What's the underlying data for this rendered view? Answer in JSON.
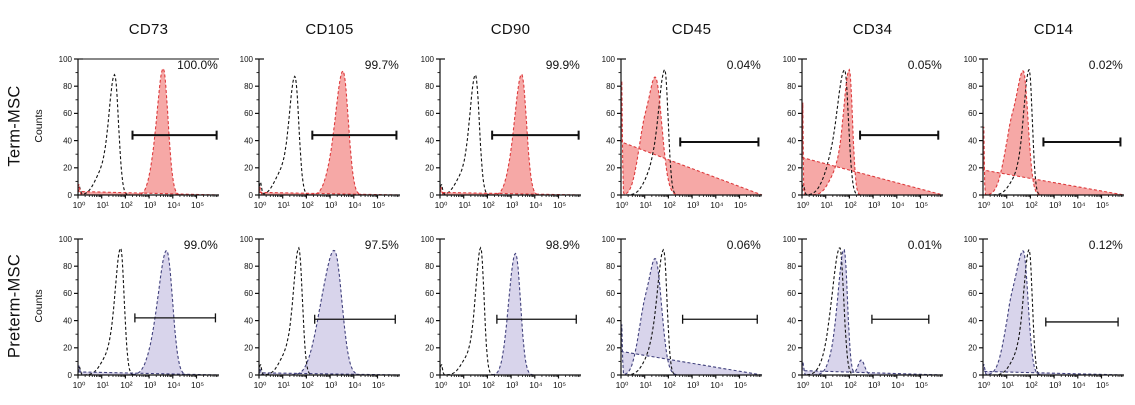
{
  "figure": {
    "columns": [
      "CD73",
      "CD105",
      "CD90",
      "CD45",
      "CD34",
      "CD14"
    ],
    "rows": [
      {
        "label": "Term-MSC",
        "ylabel": "Counts",
        "fill": "#f6a8a6",
        "outline": "#dc3a3c",
        "gate_width": 2
      },
      {
        "label": "Preterm-MSC",
        "ylabel": "Counts",
        "fill": "#d8d4eb",
        "outline": "#40407c",
        "gate_width": 1.3
      }
    ],
    "colors": {
      "axis": "#111111",
      "control_curve": "#111111",
      "text": "#111111",
      "background": "#ffffff"
    }
  },
  "axes": {
    "ylim": [
      0,
      100
    ],
    "y_ticks": [
      0,
      20,
      40,
      60,
      80,
      100
    ],
    "x_scale": "log",
    "x_tick_exponents": [
      0,
      1,
      2,
      3,
      4,
      5
    ],
    "x_max_log": 5.95
  },
  "chart_data": {
    "type": "area",
    "description": "Flow cytometry surface-marker histograms. Dashed black curve = isotype control; filled dashed curve = stained sample; horizontal capped bar = positivity gate; number = percent positive cells. Curve shapes encoded as skewed-gaussian components (c = log10 x center, h = peak height in counts, wl/wr = left/right widths in decades).",
    "panels": [
      {
        "row": 0,
        "marker": "CD73",
        "percent": "100.0%",
        "top_spine": true,
        "gate": {
          "from_log": 2.3,
          "to_log": 5.85,
          "y": 44
        },
        "control": [
          {
            "c": 1.55,
            "h": 87,
            "wl": 0.24,
            "wr": 0.16
          },
          {
            "c": 1.0,
            "h": 16,
            "wl": 0.3,
            "wr": 0.25
          },
          {
            "c": 0.05,
            "h": 6,
            "wl": 0.03,
            "wr": 0.05
          }
        ],
        "sample": [
          {
            "c": 3.6,
            "h": 92,
            "wl": 0.25,
            "wr": 0.2
          },
          {
            "c": 3.15,
            "h": 12,
            "wl": 0.2,
            "wr": 0.2
          },
          {
            "c": 0.03,
            "h": 8,
            "wl": 0.02,
            "wr": 0.04
          }
        ]
      },
      {
        "row": 0,
        "marker": "CD105",
        "percent": "99.7%",
        "top_spine": false,
        "gate": {
          "from_log": 2.25,
          "to_log": 5.8,
          "y": 44
        },
        "control": [
          {
            "c": 1.52,
            "h": 86,
            "wl": 0.24,
            "wr": 0.16
          },
          {
            "c": 0.95,
            "h": 16,
            "wl": 0.3,
            "wr": 0.25
          },
          {
            "c": 0.05,
            "h": 10,
            "wl": 0.03,
            "wr": 0.05
          }
        ],
        "sample": [
          {
            "c": 3.55,
            "h": 90,
            "wl": 0.3,
            "wr": 0.22
          },
          {
            "c": 3.0,
            "h": 12,
            "wl": 0.25,
            "wr": 0.25
          },
          {
            "c": 0.03,
            "h": 6,
            "wl": 0.02,
            "wr": 0.04
          }
        ]
      },
      {
        "row": 0,
        "marker": "CD90",
        "percent": "99.9%",
        "top_spine": false,
        "gate": {
          "from_log": 2.2,
          "to_log": 5.85,
          "y": 44
        },
        "control": [
          {
            "c": 1.5,
            "h": 87,
            "wl": 0.24,
            "wr": 0.16
          },
          {
            "c": 0.95,
            "h": 14,
            "wl": 0.3,
            "wr": 0.25
          },
          {
            "c": 0.05,
            "h": 8,
            "wl": 0.03,
            "wr": 0.05
          }
        ],
        "sample": [
          {
            "c": 3.45,
            "h": 88,
            "wl": 0.28,
            "wr": 0.2
          },
          {
            "c": 2.95,
            "h": 10,
            "wl": 0.22,
            "wr": 0.22
          },
          {
            "c": 0.03,
            "h": 6,
            "wl": 0.02,
            "wr": 0.04
          }
        ]
      },
      {
        "row": 0,
        "marker": "CD45",
        "percent": "0.04%",
        "top_spine": false,
        "gate": {
          "from_log": 2.5,
          "to_log": 5.8,
          "y": 39
        },
        "control": [
          {
            "c": 1.85,
            "h": 92,
            "wl": 0.28,
            "wr": 0.14
          },
          {
            "c": 1.25,
            "h": 14,
            "wl": 0.3,
            "wr": 0.2
          }
        ],
        "sample": [
          {
            "c": 1.45,
            "h": 86,
            "wl": 0.32,
            "wr": 0.27
          },
          {
            "c": 0.9,
            "h": 30,
            "wl": 0.26,
            "wr": 0.2
          },
          {
            "c": 0.02,
            "h": 95,
            "wl": 0.015,
            "wr": 0.03
          }
        ]
      },
      {
        "row": 0,
        "marker": "CD34",
        "percent": "0.05%",
        "top_spine": false,
        "gate": {
          "from_log": 2.45,
          "to_log": 5.75,
          "y": 44
        },
        "control": [
          {
            "c": 1.8,
            "h": 92,
            "wl": 0.35,
            "wr": 0.16
          },
          {
            "c": 1.1,
            "h": 12,
            "wl": 0.3,
            "wr": 0.2
          },
          {
            "c": 0.05,
            "h": 8,
            "wl": 0.03,
            "wr": 0.05
          }
        ],
        "sample": [
          {
            "c": 2.0,
            "h": 92,
            "wl": 0.26,
            "wr": 0.13
          },
          {
            "c": 1.4,
            "h": 14,
            "wl": 0.3,
            "wr": 0.2
          },
          {
            "c": 0.02,
            "h": 90,
            "wl": 0.013,
            "wr": 0.02
          }
        ]
      },
      {
        "row": 0,
        "marker": "CD14",
        "percent": "0.02%",
        "top_spine": false,
        "gate": {
          "from_log": 2.55,
          "to_log": 5.8,
          "y": 39
        },
        "control": [
          {
            "c": 1.95,
            "h": 92,
            "wl": 0.24,
            "wr": 0.13
          },
          {
            "c": 1.4,
            "h": 12,
            "wl": 0.3,
            "wr": 0.2
          }
        ],
        "sample": [
          {
            "c": 1.7,
            "h": 91,
            "wl": 0.35,
            "wr": 0.2
          },
          {
            "c": 1.1,
            "h": 28,
            "wl": 0.3,
            "wr": 0.2
          },
          {
            "c": 0.02,
            "h": 60,
            "wl": 0.013,
            "wr": 0.025
          }
        ]
      },
      {
        "row": 1,
        "marker": "CD73",
        "percent": "99.0%",
        "top_spine": false,
        "gate": {
          "from_log": 2.4,
          "to_log": 5.8,
          "y": 42
        },
        "control": [
          {
            "c": 1.8,
            "h": 93,
            "wl": 0.24,
            "wr": 0.15
          },
          {
            "c": 1.25,
            "h": 13,
            "wl": 0.3,
            "wr": 0.2
          },
          {
            "c": 0.05,
            "h": 6,
            "wl": 0.03,
            "wr": 0.05
          }
        ],
        "sample": [
          {
            "c": 3.75,
            "h": 90,
            "wl": 0.32,
            "wr": 0.24
          },
          {
            "c": 3.2,
            "h": 16,
            "wl": 0.3,
            "wr": 0.25
          },
          {
            "c": 0.03,
            "h": 7,
            "wl": 0.02,
            "wr": 0.04
          }
        ]
      },
      {
        "row": 1,
        "marker": "CD105",
        "percent": "97.5%",
        "top_spine": false,
        "gate": {
          "from_log": 2.35,
          "to_log": 5.75,
          "y": 41
        },
        "control": [
          {
            "c": 1.68,
            "h": 93,
            "wl": 0.23,
            "wr": 0.15
          },
          {
            "c": 1.15,
            "h": 15,
            "wl": 0.3,
            "wr": 0.2
          },
          {
            "c": 0.05,
            "h": 8,
            "wl": 0.03,
            "wr": 0.05
          }
        ],
        "sample": [
          {
            "c": 3.2,
            "h": 89,
            "wl": 0.4,
            "wr": 0.3
          },
          {
            "c": 2.55,
            "h": 24,
            "wl": 0.35,
            "wr": 0.3
          },
          {
            "c": 0.03,
            "h": 5,
            "wl": 0.02,
            "wr": 0.04
          }
        ]
      },
      {
        "row": 1,
        "marker": "CD90",
        "percent": "98.9%",
        "top_spine": false,
        "gate": {
          "from_log": 2.4,
          "to_log": 5.75,
          "y": 41
        },
        "control": [
          {
            "c": 1.72,
            "h": 93,
            "wl": 0.22,
            "wr": 0.14
          },
          {
            "c": 1.2,
            "h": 13,
            "wl": 0.3,
            "wr": 0.2
          },
          {
            "c": 0.05,
            "h": 8,
            "wl": 0.03,
            "wr": 0.05
          }
        ],
        "sample": [
          {
            "c": 3.2,
            "h": 87,
            "wl": 0.26,
            "wr": 0.2
          },
          {
            "c": 2.85,
            "h": 10,
            "wl": 0.2,
            "wr": 0.2
          }
        ]
      },
      {
        "row": 1,
        "marker": "CD45",
        "percent": "0.06%",
        "top_spine": false,
        "gate": {
          "from_log": 2.6,
          "to_log": 5.75,
          "y": 41
        },
        "control": [
          {
            "c": 1.8,
            "h": 92,
            "wl": 0.28,
            "wr": 0.14
          },
          {
            "c": 1.2,
            "h": 12,
            "wl": 0.3,
            "wr": 0.2
          }
        ],
        "sample": [
          {
            "c": 1.45,
            "h": 85,
            "wl": 0.32,
            "wr": 0.26
          },
          {
            "c": 0.9,
            "h": 28,
            "wl": 0.26,
            "wr": 0.2
          },
          {
            "c": 0.02,
            "h": 42,
            "wl": 0.015,
            "wr": 0.03
          }
        ]
      },
      {
        "row": 1,
        "marker": "CD34",
        "percent": "0.01%",
        "top_spine": false,
        "gate": {
          "from_log": 2.95,
          "to_log": 5.35,
          "y": 41
        },
        "control": [
          {
            "c": 1.6,
            "h": 93,
            "wl": 0.3,
            "wr": 0.16
          },
          {
            "c": 1.1,
            "h": 12,
            "wl": 0.3,
            "wr": 0.2
          }
        ],
        "sample": [
          {
            "c": 1.78,
            "h": 91,
            "wl": 0.24,
            "wr": 0.14
          },
          {
            "c": 1.35,
            "h": 13,
            "wl": 0.25,
            "wr": 0.2
          },
          {
            "c": 2.5,
            "h": 11,
            "wl": 0.14,
            "wr": 0.14
          },
          {
            "c": 0.03,
            "h": 10,
            "wl": 0.02,
            "wr": 0.04
          }
        ]
      },
      {
        "row": 1,
        "marker": "CD14",
        "percent": "0.12%",
        "top_spine": false,
        "gate": {
          "from_log": 2.65,
          "to_log": 5.7,
          "y": 39
        },
        "control": [
          {
            "c": 1.95,
            "h": 92,
            "wl": 0.24,
            "wr": 0.13
          },
          {
            "c": 1.4,
            "h": 12,
            "wl": 0.28,
            "wr": 0.2
          }
        ],
        "sample": [
          {
            "c": 1.7,
            "h": 91,
            "wl": 0.38,
            "wr": 0.2
          },
          {
            "c": 1.1,
            "h": 24,
            "wl": 0.3,
            "wr": 0.2
          },
          {
            "c": 0.03,
            "h": 8,
            "wl": 0.02,
            "wr": 0.04
          }
        ]
      }
    ]
  }
}
